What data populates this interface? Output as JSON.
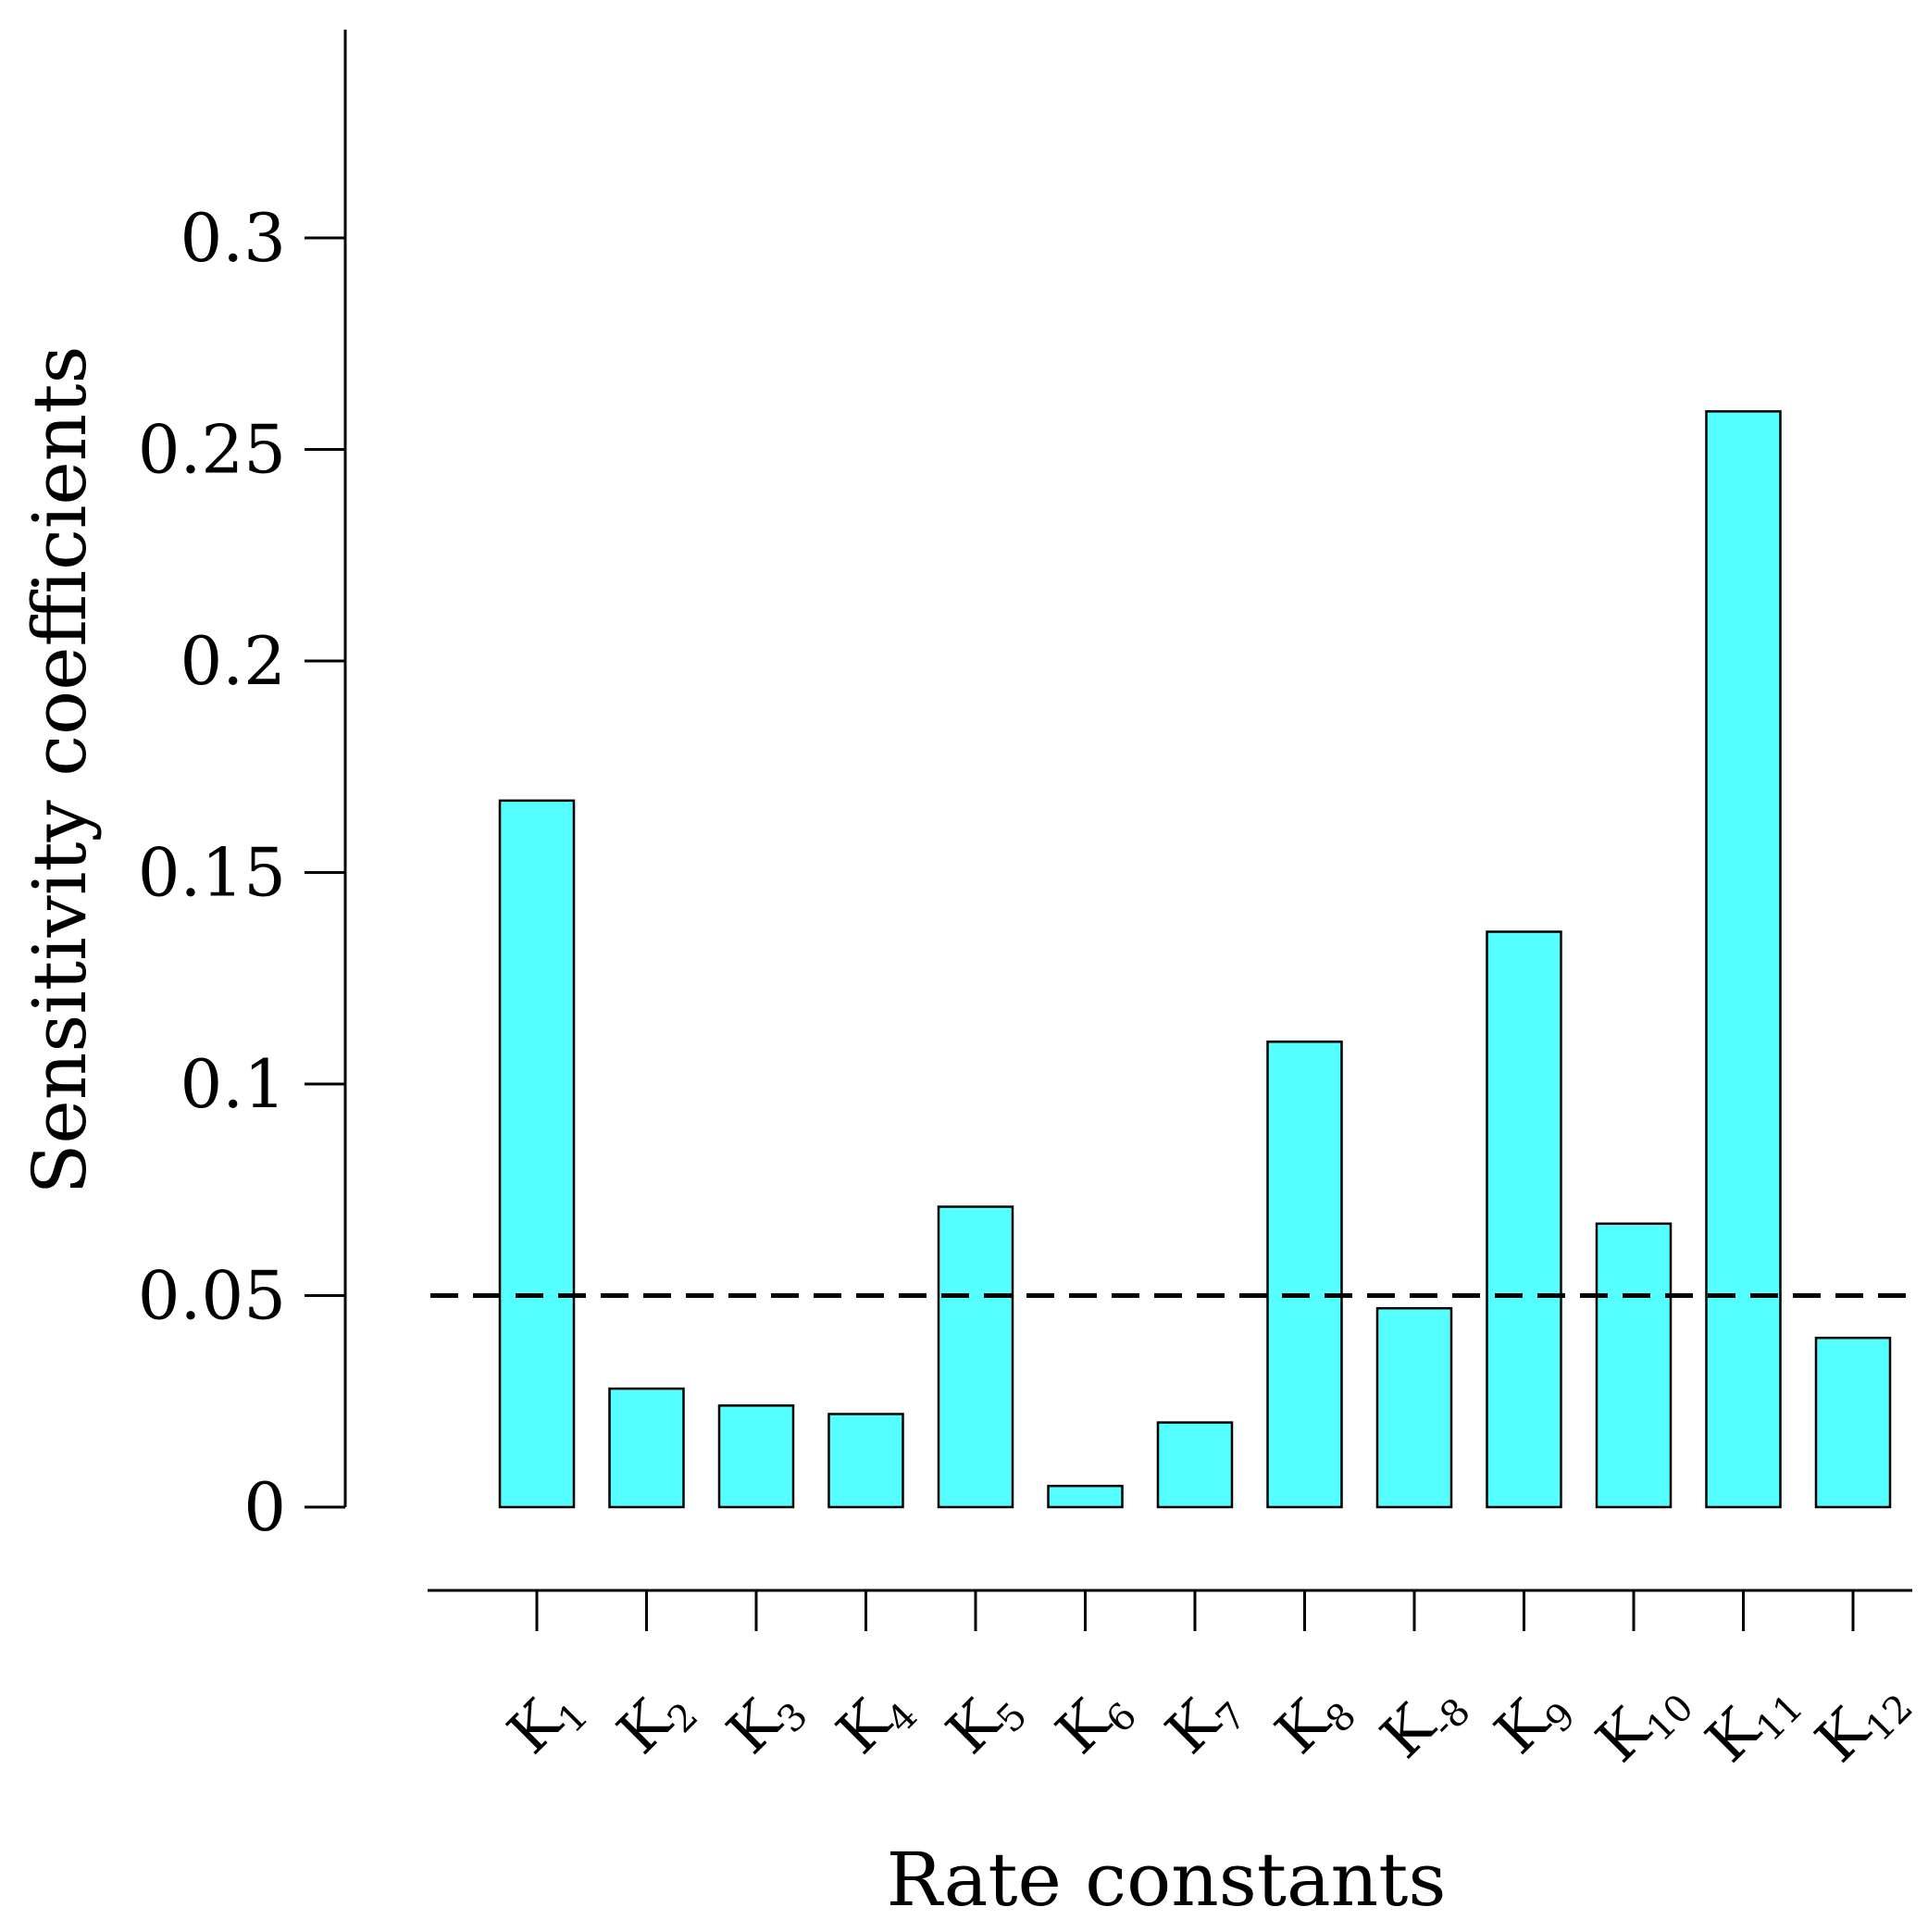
{
  "chart_data": {
    "type": "bar",
    "title": "",
    "xlabel": "Rate constants",
    "ylabel": "Sensitivity coefficients",
    "categories": [
      {
        "base": "K",
        "sub": "1"
      },
      {
        "base": "K",
        "sub": "2"
      },
      {
        "base": "K",
        "sub": "3"
      },
      {
        "base": "K",
        "sub": "4"
      },
      {
        "base": "K",
        "sub": "5"
      },
      {
        "base": "K",
        "sub": "6"
      },
      {
        "base": "K",
        "sub": "7"
      },
      {
        "base": "K",
        "sub": "8"
      },
      {
        "base": "K",
        "sub": "-8"
      },
      {
        "base": "K",
        "sub": "9"
      },
      {
        "base": "K",
        "sub": "10"
      },
      {
        "base": "K",
        "sub": "11"
      },
      {
        "base": "K",
        "sub": "12"
      }
    ],
    "values": [
      0.167,
      0.028,
      0.024,
      0.022,
      0.071,
      0.005,
      0.02,
      0.11,
      0.047,
      0.136,
      0.067,
      0.259,
      0.04
    ],
    "yticks": [
      0,
      0.05,
      0.1,
      0.15,
      0.2,
      0.25,
      0.3
    ],
    "ytick_labels": [
      "0",
      "0.05",
      "0.1",
      "0.15",
      "0.2",
      "0.25",
      "0.3"
    ],
    "ylim": [
      0,
      0.35
    ],
    "reference_line": {
      "value": 0.05,
      "style": "dashed",
      "color": "#000000"
    },
    "bar_color": "#55ffff",
    "grid": false,
    "legend": "none"
  }
}
